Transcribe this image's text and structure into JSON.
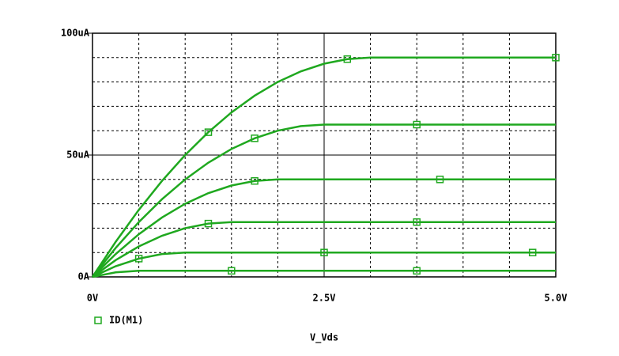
{
  "chart_data": {
    "type": "line",
    "xlabel": "V_Vds",
    "legend": {
      "label": "ID(M1)",
      "marker": "square"
    },
    "color": "#1fa81f",
    "x": [
      0,
      0.25,
      0.5,
      0.75,
      1,
      1.25,
      1.5,
      1.75,
      2,
      2.25,
      2.5,
      2.75,
      3,
      3.25,
      3.5,
      3.75,
      4,
      4.25,
      4.5,
      4.75,
      5
    ],
    "series": [
      {
        "values": [
          0,
          1.875,
          2.5,
          2.5,
          2.5,
          2.5,
          2.5,
          2.5,
          2.5,
          2.5,
          2.5,
          2.5,
          2.5,
          2.5,
          2.5,
          2.5,
          2.5,
          2.5,
          2.5,
          2.5,
          2.5
        ]
      },
      {
        "values": [
          0,
          4.375,
          7.5,
          9.375,
          10,
          10,
          10,
          10,
          10,
          10,
          10,
          10,
          10,
          10,
          10,
          10,
          10,
          10,
          10,
          10,
          10
        ]
      },
      {
        "values": [
          0,
          6.875,
          12.5,
          16.875,
          20,
          21.875,
          22.5,
          22.5,
          22.5,
          22.5,
          22.5,
          22.5,
          22.5,
          22.5,
          22.5,
          22.5,
          22.5,
          22.5,
          22.5,
          22.5,
          22.5
        ]
      },
      {
        "values": [
          0,
          9.375,
          17.5,
          24.375,
          30,
          34.375,
          37.5,
          39.375,
          40,
          40,
          40,
          40,
          40,
          40,
          40,
          40,
          40,
          40,
          40,
          40,
          40
        ]
      },
      {
        "values": [
          0,
          11.875,
          22.5,
          31.875,
          40,
          46.875,
          52.5,
          56.875,
          60,
          61.875,
          62.5,
          62.5,
          62.5,
          62.5,
          62.5,
          62.5,
          62.5,
          62.5,
          62.5,
          62.5,
          62.5
        ]
      },
      {
        "values": [
          0,
          14.375,
          27.5,
          39.375,
          50,
          59.375,
          67.5,
          74.375,
          80,
          84.375,
          87.5,
          89.375,
          90,
          90,
          90,
          90,
          90,
          90,
          90,
          90,
          90
        ]
      }
    ],
    "xlim": [
      0,
      5
    ],
    "xticks": [
      {
        "value": 0,
        "label": "0V"
      },
      {
        "value": 2.5,
        "label": "2.5V"
      },
      {
        "value": 5,
        "label": "5.0V"
      }
    ],
    "ylim": [
      0,
      100
    ],
    "yticks": [
      {
        "value": 0,
        "label": "0A"
      },
      {
        "value": 50,
        "label": "50uA"
      },
      {
        "value": 100,
        "label": "100uA"
      }
    ],
    "x_minor_grid": [
      0.5,
      1,
      1.5,
      2,
      3,
      3.5,
      4,
      4.5
    ],
    "y_minor_grid": [
      10,
      20,
      30,
      40,
      60,
      70,
      80,
      90
    ],
    "grid": true
  }
}
